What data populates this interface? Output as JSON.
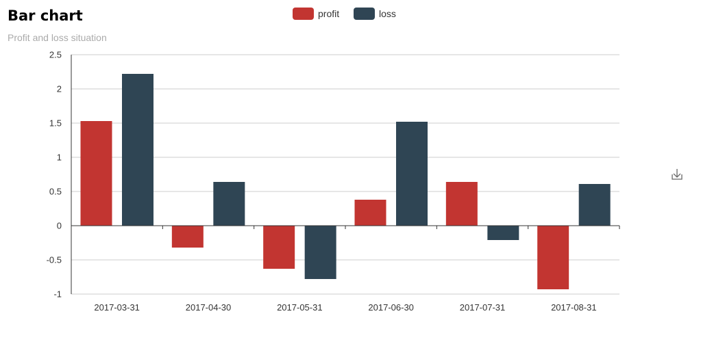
{
  "chart_data": {
    "type": "bar",
    "title": "Bar chart",
    "subtitle": "Profit and loss situation",
    "categories": [
      "2017-03-31",
      "2017-04-30",
      "2017-05-31",
      "2017-06-30",
      "2017-07-31",
      "2017-08-31"
    ],
    "series": [
      {
        "name": "profit",
        "color": "#c23531",
        "values": [
          1.53,
          -0.32,
          -0.63,
          0.38,
          0.64,
          -0.93
        ]
      },
      {
        "name": "loss",
        "color": "#2f4554",
        "values": [
          2.22,
          0.64,
          -0.78,
          1.52,
          -0.21,
          0.61
        ]
      }
    ],
    "ylim": [
      -1,
      2.5
    ],
    "yticks": [
      "2.5",
      "2",
      "1.5",
      "1",
      "0.5",
      "0",
      "-0.5",
      "-1"
    ],
    "grid": true,
    "legend_position": "top-center"
  },
  "toolbox": {
    "icon": "download-icon"
  }
}
